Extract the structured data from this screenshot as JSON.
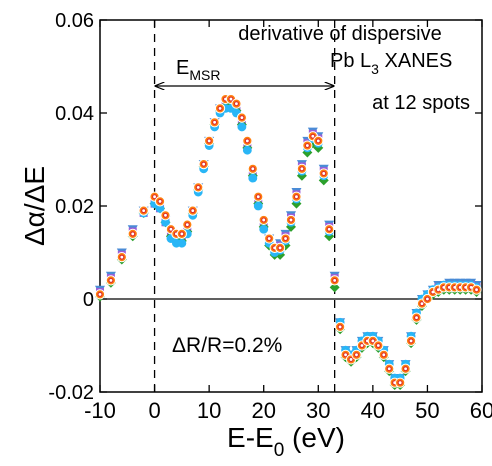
{
  "chart_data": {
    "type": "scatter",
    "xlabel_main": "E-E",
    "xlabel_sub": "0",
    "xlabel_unit": " (eV)",
    "ylabel": "Δα/ΔE",
    "xlim": [
      -10,
      60
    ],
    "ylim": [
      -0.02,
      0.06
    ],
    "xticks": [
      -10,
      0,
      10,
      20,
      30,
      40,
      50,
      60
    ],
    "xtick_labels": [
      "-10",
      "0",
      "10",
      "20",
      "30",
      "40",
      "50",
      "60"
    ],
    "yticks": [
      -0.02,
      0,
      0.02,
      0.04,
      0.06
    ],
    "ytick_labels": [
      "-0.02",
      "0",
      "0.02",
      "0.04",
      "0.06"
    ],
    "grid": false,
    "zero_line": 0,
    "vlines": [
      0,
      33
    ],
    "annotations": {
      "line1": "derivative of dispersive",
      "line2_a": "Pb L",
      "line2_sub": "3",
      "line2_b": " XANES",
      "line3": "at 12 spots",
      "emsr_main": "E",
      "emsr_sub": "MSR",
      "emsr_range": [
        0,
        33
      ],
      "delta_r": "ΔR/R=0.2%"
    },
    "x": [
      -10,
      -8,
      -6,
      -4,
      -2,
      0,
      1,
      2,
      3,
      4,
      5,
      6,
      7,
      8,
      9,
      10,
      11,
      12,
      13,
      14,
      15,
      16,
      17,
      18,
      19,
      20,
      21,
      22,
      23,
      24,
      25,
      26,
      27,
      28,
      29,
      30,
      31,
      32,
      33,
      34,
      35,
      36,
      37,
      38,
      39,
      40,
      41,
      42,
      43,
      44,
      45,
      46,
      47,
      48,
      49,
      50,
      51,
      52,
      53,
      54,
      55,
      56,
      57,
      58,
      59
    ],
    "series": [
      {
        "color": "#ff7f0e",
        "marker": "circle-open-red",
        "y": [
          0.001,
          0.004,
          0.009,
          0.014,
          0.019,
          0.022,
          0.021,
          0.018,
          0.015,
          0.014,
          0.014,
          0.016,
          0.019,
          0.024,
          0.029,
          0.034,
          0.038,
          0.041,
          0.043,
          0.043,
          0.042,
          0.039,
          0.034,
          0.028,
          0.022,
          0.017,
          0.013,
          0.011,
          0.011,
          0.013,
          0.017,
          0.022,
          0.028,
          0.033,
          0.035,
          0.034,
          0.027,
          0.015,
          0.004,
          -0.006,
          -0.012,
          -0.013,
          -0.012,
          -0.01,
          -0.009,
          -0.009,
          -0.01,
          -0.012,
          -0.015,
          -0.018,
          -0.018,
          -0.015,
          -0.009,
          -0.004,
          -0.001,
          0.0,
          0.0015,
          0.002,
          0.0025,
          0.0025,
          0.0025,
          0.0025,
          0.0025,
          0.0025,
          0.002
        ]
      },
      {
        "color": "#4a8bd6",
        "marker": "triangle-down",
        "y": [
          0.002,
          0.005,
          0.01,
          0.015,
          0.019,
          0.021,
          0.02,
          0.017,
          0.014,
          0.013,
          0.013,
          0.015,
          0.019,
          0.024,
          0.029,
          0.034,
          0.038,
          0.041,
          0.042,
          0.042,
          0.041,
          0.038,
          0.033,
          0.027,
          0.021,
          0.016,
          0.013,
          0.011,
          0.012,
          0.014,
          0.018,
          0.023,
          0.029,
          0.034,
          0.036,
          0.035,
          0.028,
          0.016,
          0.005,
          -0.005,
          -0.011,
          -0.012,
          -0.011,
          -0.009,
          -0.008,
          -0.008,
          -0.009,
          -0.011,
          -0.014,
          -0.017,
          -0.017,
          -0.014,
          -0.008,
          -0.003,
          0.0,
          0.001,
          0.002,
          0.003,
          0.003,
          0.0035,
          0.0035,
          0.0035,
          0.0035,
          0.0035,
          0.003
        ]
      },
      {
        "color": "#9c5fd6",
        "marker": "square",
        "y": [
          0.0015,
          0.0045,
          0.0095,
          0.0145,
          0.0185,
          0.0205,
          0.0195,
          0.0165,
          0.0135,
          0.0125,
          0.0125,
          0.0145,
          0.0185,
          0.0235,
          0.0285,
          0.0335,
          0.0375,
          0.0405,
          0.0415,
          0.0415,
          0.0405,
          0.0375,
          0.0325,
          0.0265,
          0.0205,
          0.0155,
          0.0125,
          0.0105,
          0.0115,
          0.0135,
          0.0175,
          0.0225,
          0.0285,
          0.0335,
          0.0355,
          0.0345,
          0.0275,
          0.0155,
          0.0045,
          -0.0055,
          -0.0115,
          -0.0125,
          -0.0115,
          -0.0095,
          -0.0085,
          -0.0085,
          -0.0095,
          -0.0115,
          -0.0145,
          -0.0175,
          -0.0175,
          -0.0145,
          -0.0085,
          -0.0035,
          -0.0005,
          0.0005,
          0.0015,
          0.0025,
          0.0025,
          0.003,
          0.003,
          0.003,
          0.003,
          0.003,
          0.0025
        ]
      },
      {
        "color": "#2ca02c",
        "marker": "diamond",
        "y": [
          0.0005,
          0.0035,
          0.0085,
          0.0135,
          0.0185,
          0.0205,
          0.0195,
          0.0165,
          0.0135,
          0.0125,
          0.0125,
          0.0145,
          0.0185,
          0.0235,
          0.0285,
          0.0335,
          0.0375,
          0.0405,
          0.0415,
          0.0415,
          0.0405,
          0.0375,
          0.0325,
          0.0265,
          0.0205,
          0.0155,
          0.0115,
          0.0095,
          0.0095,
          0.0115,
          0.0155,
          0.0205,
          0.0265,
          0.0315,
          0.0335,
          0.0325,
          0.0255,
          0.0135,
          0.0025,
          -0.0065,
          -0.0125,
          -0.0135,
          -0.0125,
          -0.0105,
          -0.0095,
          -0.0095,
          -0.0105,
          -0.0125,
          -0.0155,
          -0.0185,
          -0.0185,
          -0.0155,
          -0.0095,
          -0.0045,
          -0.0015,
          0.0,
          0.001,
          0.0015,
          0.002,
          0.002,
          0.002,
          0.002,
          0.002,
          0.002,
          0.0015
        ]
      },
      {
        "color": "#29b6f6",
        "marker": "circle",
        "y": [
          0.001,
          0.004,
          0.009,
          0.014,
          0.0185,
          0.0205,
          0.0195,
          0.0165,
          0.013,
          0.012,
          0.012,
          0.014,
          0.018,
          0.023,
          0.028,
          0.033,
          0.037,
          0.04,
          0.041,
          0.041,
          0.04,
          0.037,
          0.032,
          0.026,
          0.02,
          0.015,
          0.012,
          0.01,
          0.0105,
          0.0125,
          0.0165,
          0.0215,
          0.0275,
          0.0325,
          0.0345,
          0.0335,
          0.0265,
          0.0145,
          0.004,
          -0.005,
          -0.011,
          -0.012,
          -0.011,
          -0.009,
          -0.008,
          -0.008,
          -0.009,
          -0.011,
          -0.014,
          -0.017,
          -0.017,
          -0.014,
          -0.008,
          -0.003,
          0.0,
          0.001,
          0.002,
          0.0025,
          0.003,
          0.003,
          0.003,
          0.003,
          0.003,
          0.003,
          0.0025
        ]
      }
    ]
  }
}
